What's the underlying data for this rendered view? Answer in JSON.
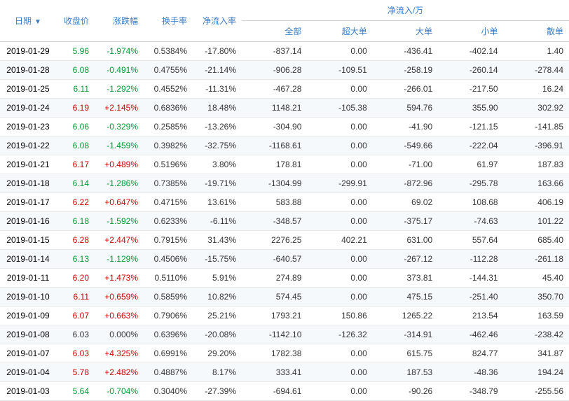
{
  "headers": {
    "date": "日期",
    "price": "收盘价",
    "change": "涨跌幅",
    "turnover": "换手率",
    "inflowrate": "净流入率",
    "inflow_group": "净流入/万",
    "all": "全部",
    "xl": "超大单",
    "l": "大单",
    "s": "小单",
    "sc": "散单"
  },
  "colors": {
    "header": "#3b7bc4",
    "green": "#009933",
    "red": "#cc0000",
    "black": "#333333",
    "row_alt": "#f5f9fc",
    "border": "#e8e8e8"
  },
  "rows": [
    {
      "date": "2019-01-29",
      "price": "5.96",
      "priceColor": "green",
      "change": "-1.974%",
      "changeColor": "green",
      "turnover": "0.5384%",
      "inflowrate": "-17.80%",
      "all": "-837.14",
      "xl": "0.00",
      "l": "-436.41",
      "s": "-402.14",
      "sc": "1.40"
    },
    {
      "date": "2019-01-28",
      "price": "6.08",
      "priceColor": "green",
      "change": "-0.491%",
      "changeColor": "green",
      "turnover": "0.4755%",
      "inflowrate": "-21.14%",
      "all": "-906.28",
      "xl": "-109.51",
      "l": "-258.19",
      "s": "-260.14",
      "sc": "-278.44"
    },
    {
      "date": "2019-01-25",
      "price": "6.11",
      "priceColor": "green",
      "change": "-1.292%",
      "changeColor": "green",
      "turnover": "0.4552%",
      "inflowrate": "-11.31%",
      "all": "-467.28",
      "xl": "0.00",
      "l": "-266.01",
      "s": "-217.50",
      "sc": "16.24"
    },
    {
      "date": "2019-01-24",
      "price": "6.19",
      "priceColor": "red",
      "change": "+2.145%",
      "changeColor": "red",
      "turnover": "0.6836%",
      "inflowrate": "18.48%",
      "all": "1148.21",
      "xl": "-105.38",
      "l": "594.76",
      "s": "355.90",
      "sc": "302.92"
    },
    {
      "date": "2019-01-23",
      "price": "6.06",
      "priceColor": "green",
      "change": "-0.329%",
      "changeColor": "green",
      "turnover": "0.2585%",
      "inflowrate": "-13.26%",
      "all": "-304.90",
      "xl": "0.00",
      "l": "-41.90",
      "s": "-121.15",
      "sc": "-141.85"
    },
    {
      "date": "2019-01-22",
      "price": "6.08",
      "priceColor": "green",
      "change": "-1.459%",
      "changeColor": "green",
      "turnover": "0.3982%",
      "inflowrate": "-32.75%",
      "all": "-1168.61",
      "xl": "0.00",
      "l": "-549.66",
      "s": "-222.04",
      "sc": "-396.91"
    },
    {
      "date": "2019-01-21",
      "price": "6.17",
      "priceColor": "red",
      "change": "+0.489%",
      "changeColor": "red",
      "turnover": "0.5196%",
      "inflowrate": "3.80%",
      "all": "178.81",
      "xl": "0.00",
      "l": "-71.00",
      "s": "61.97",
      "sc": "187.83"
    },
    {
      "date": "2019-01-18",
      "price": "6.14",
      "priceColor": "green",
      "change": "-1.286%",
      "changeColor": "green",
      "turnover": "0.7385%",
      "inflowrate": "-19.71%",
      "all": "-1304.99",
      "xl": "-299.91",
      "l": "-872.96",
      "s": "-295.78",
      "sc": "163.66"
    },
    {
      "date": "2019-01-17",
      "price": "6.22",
      "priceColor": "red",
      "change": "+0.647%",
      "changeColor": "red",
      "turnover": "0.4715%",
      "inflowrate": "13.61%",
      "all": "583.88",
      "xl": "0.00",
      "l": "69.02",
      "s": "108.68",
      "sc": "406.19"
    },
    {
      "date": "2019-01-16",
      "price": "6.18",
      "priceColor": "green",
      "change": "-1.592%",
      "changeColor": "green",
      "turnover": "0.6233%",
      "inflowrate": "-6.11%",
      "all": "-348.57",
      "xl": "0.00",
      "l": "-375.17",
      "s": "-74.63",
      "sc": "101.22"
    },
    {
      "date": "2019-01-15",
      "price": "6.28",
      "priceColor": "red",
      "change": "+2.447%",
      "changeColor": "red",
      "turnover": "0.7915%",
      "inflowrate": "31.43%",
      "all": "2276.25",
      "xl": "402.21",
      "l": "631.00",
      "s": "557.64",
      "sc": "685.40"
    },
    {
      "date": "2019-01-14",
      "price": "6.13",
      "priceColor": "green",
      "change": "-1.129%",
      "changeColor": "green",
      "turnover": "0.4506%",
      "inflowrate": "-15.75%",
      "all": "-640.57",
      "xl": "0.00",
      "l": "-267.12",
      "s": "-112.28",
      "sc": "-261.18"
    },
    {
      "date": "2019-01-11",
      "price": "6.20",
      "priceColor": "red",
      "change": "+1.473%",
      "changeColor": "red",
      "turnover": "0.5110%",
      "inflowrate": "5.91%",
      "all": "274.89",
      "xl": "0.00",
      "l": "373.81",
      "s": "-144.31",
      "sc": "45.40"
    },
    {
      "date": "2019-01-10",
      "price": "6.11",
      "priceColor": "red",
      "change": "+0.659%",
      "changeColor": "red",
      "turnover": "0.5859%",
      "inflowrate": "10.82%",
      "all": "574.45",
      "xl": "0.00",
      "l": "475.15",
      "s": "-251.40",
      "sc": "350.70"
    },
    {
      "date": "2019-01-09",
      "price": "6.07",
      "priceColor": "red",
      "change": "+0.663%",
      "changeColor": "red",
      "turnover": "0.7906%",
      "inflowrate": "25.21%",
      "all": "1793.21",
      "xl": "150.86",
      "l": "1265.22",
      "s": "213.54",
      "sc": "163.59"
    },
    {
      "date": "2019-01-08",
      "price": "6.03",
      "priceColor": "black",
      "change": "0.000%",
      "changeColor": "black",
      "turnover": "0.6396%",
      "inflowrate": "-20.08%",
      "all": "-1142.10",
      "xl": "-126.32",
      "l": "-314.91",
      "s": "-462.46",
      "sc": "-238.42"
    },
    {
      "date": "2019-01-07",
      "price": "6.03",
      "priceColor": "red",
      "change": "+4.325%",
      "changeColor": "red",
      "turnover": "0.6991%",
      "inflowrate": "29.20%",
      "all": "1782.38",
      "xl": "0.00",
      "l": "615.75",
      "s": "824.77",
      "sc": "341.87"
    },
    {
      "date": "2019-01-04",
      "price": "5.78",
      "priceColor": "red",
      "change": "+2.482%",
      "changeColor": "red",
      "turnover": "0.4887%",
      "inflowrate": "8.17%",
      "all": "333.41",
      "xl": "0.00",
      "l": "187.53",
      "s": "-48.36",
      "sc": "194.24"
    },
    {
      "date": "2019-01-03",
      "price": "5.64",
      "priceColor": "green",
      "change": "-0.704%",
      "changeColor": "green",
      "turnover": "0.3040%",
      "inflowrate": "-27.39%",
      "all": "-694.61",
      "xl": "0.00",
      "l": "-90.26",
      "s": "-348.79",
      "sc": "-255.56"
    }
  ]
}
